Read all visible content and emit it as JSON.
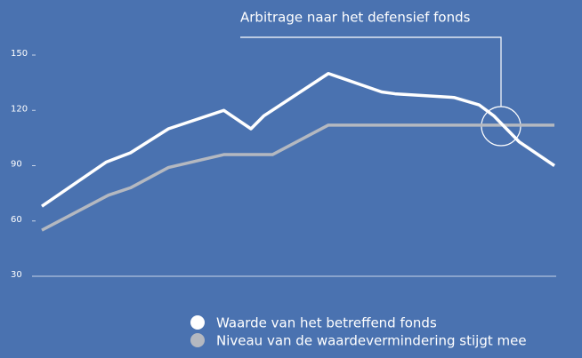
{
  "chart_data": {
    "type": "line",
    "annotation": "Arbitrage naar het defensief fonds",
    "xlim": [
      0,
      100
    ],
    "ylim": [
      30,
      150
    ],
    "yticks": [
      30,
      60,
      90,
      120,
      150
    ],
    "series": [
      {
        "name": "Waarde van het betreffend fonds",
        "color": "#ffffff",
        "x": [
          0,
          12.6,
          17.3,
          24.7,
          35.5,
          40.8,
          43.3,
          55.9,
          66.3,
          68.9,
          80.4,
          85.3,
          88.2,
          93.1,
          100
        ],
        "values": [
          68,
          92,
          97,
          110,
          120,
          110,
          117,
          140,
          130,
          129,
          127,
          123,
          117,
          103,
          90
        ]
      },
      {
        "name": "Niveau van de waardevermindering stijgt mee",
        "color": "#b4b8c0",
        "x": [
          0,
          13,
          17.3,
          24.7,
          35.5,
          45,
          55.9,
          100
        ],
        "values": [
          55,
          74,
          78,
          89,
          96,
          96,
          112,
          112
        ]
      }
    ]
  }
}
